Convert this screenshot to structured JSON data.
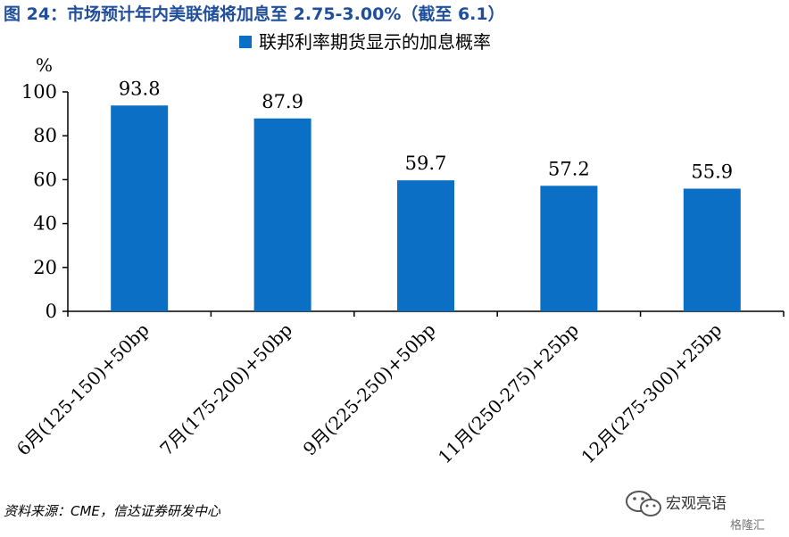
{
  "figure_title": "图 24：市场预计年内美联储将加息至 2.75-3.00%（截至 6.1）",
  "source_note": "资料来源：CME，信达证券研发中心",
  "watermark": {
    "label": "宏观亮语",
    "sub": "格隆汇",
    "icon": "wechat-icon"
  },
  "colors": {
    "bar": "#0b6fc6",
    "title": "#1f4e9a"
  },
  "chart_data": {
    "type": "bar",
    "title": "",
    "ylabel": "%",
    "xlabel": "",
    "ylim": [
      0,
      100
    ],
    "yticks": [
      0,
      20,
      40,
      60,
      80,
      100
    ],
    "grid": false,
    "legend_position": "top-center",
    "categories": [
      "6月(125-150)+50bp",
      "7月(175-200)+50bp",
      "9月(225-250)+50bp",
      "11月(250-275)+25bp",
      "12月(275-300)+25bp"
    ],
    "series": [
      {
        "name": "联邦利率期货显示的加息概率",
        "values": [
          93.8,
          87.9,
          59.7,
          57.2,
          55.9
        ]
      }
    ]
  }
}
